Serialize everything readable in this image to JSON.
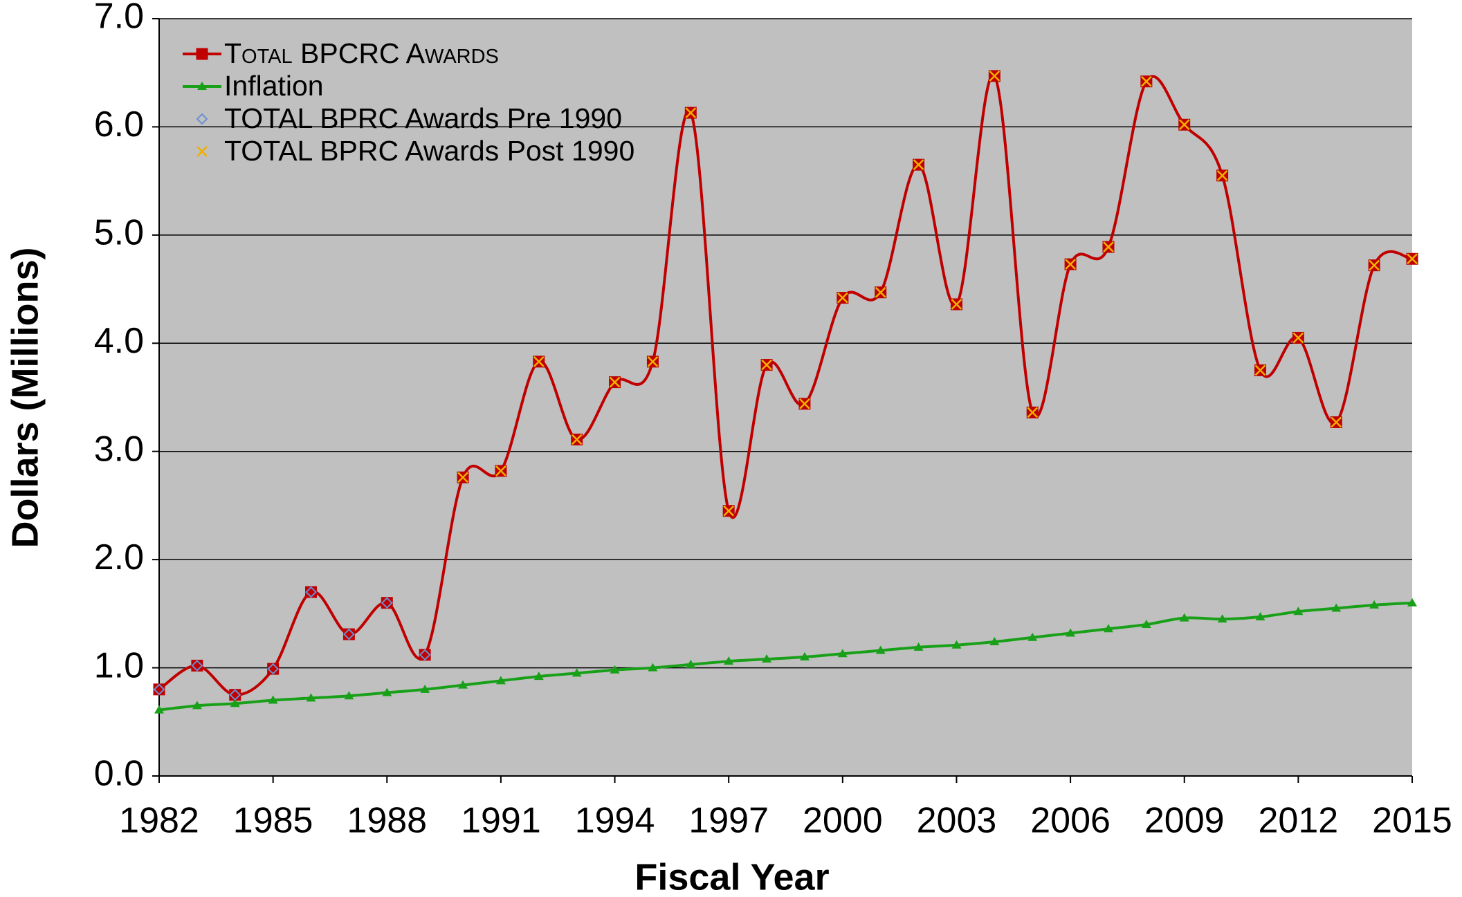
{
  "chart_data": {
    "type": "line",
    "xlabel": "Fiscal Year",
    "ylabel": "Dollars (Millions)",
    "x": [
      1982,
      1983,
      1984,
      1985,
      1986,
      1987,
      1988,
      1989,
      1990,
      1991,
      1992,
      1993,
      1994,
      1995,
      1996,
      1997,
      1998,
      1999,
      2000,
      2001,
      2002,
      2003,
      2004,
      2005,
      2006,
      2007,
      2008,
      2009,
      2010,
      2011,
      2012,
      2013,
      2014,
      2015
    ],
    "xlim": [
      1982,
      2015
    ],
    "xticks": [
      1982,
      1985,
      1988,
      1991,
      1994,
      1997,
      2000,
      2003,
      2006,
      2009,
      2012,
      2015
    ],
    "ylim": [
      0,
      7
    ],
    "yticks": [
      {
        "value": 0,
        "label": "0.0"
      },
      {
        "value": 1,
        "label": "1.0"
      },
      {
        "value": 2,
        "label": "2.0"
      },
      {
        "value": 3,
        "label": "3.0"
      },
      {
        "value": 4,
        "label": "4.0"
      },
      {
        "value": 5,
        "label": "5.0"
      },
      {
        "value": 6,
        "label": "6.0"
      },
      {
        "value": 7,
        "label": "7.0"
      }
    ],
    "grid": true,
    "legend": "upper left",
    "background": "#c0c0c0",
    "series": [
      {
        "name": "Total BPCRC Awards",
        "color": "#c00000",
        "line": true,
        "smooth": true,
        "marker": "square",
        "values": [
          0.8,
          1.02,
          0.75,
          0.99,
          1.7,
          1.31,
          1.6,
          1.12,
          2.76,
          2.82,
          3.83,
          3.11,
          3.64,
          3.83,
          6.13,
          2.45,
          3.8,
          3.44,
          4.42,
          4.47,
          5.65,
          4.36,
          6.47,
          3.36,
          4.73,
          4.89,
          6.42,
          6.02,
          5.55,
          3.75,
          4.05,
          3.27,
          4.72,
          4.78
        ]
      },
      {
        "name": "Inflation",
        "color": "#18a018",
        "line": true,
        "smooth": true,
        "marker": "triangle",
        "values": [
          0.61,
          0.65,
          0.67,
          0.7,
          0.72,
          0.74,
          0.77,
          0.8,
          0.84,
          0.88,
          0.92,
          0.95,
          0.98,
          1.0,
          1.03,
          1.06,
          1.08,
          1.1,
          1.13,
          1.16,
          1.19,
          1.21,
          1.24,
          1.28,
          1.32,
          1.36,
          1.4,
          1.46,
          1.45,
          1.47,
          1.52,
          1.55,
          1.58,
          1.6
        ]
      },
      {
        "name": "TOTAL BPRC Awards Pre 1990",
        "color": "#6a8fd0",
        "line": false,
        "marker": "diamond",
        "values": [
          0.8,
          1.02,
          0.75,
          0.99,
          1.7,
          1.31,
          1.6,
          1.12,
          null,
          null,
          null,
          null,
          null,
          null,
          null,
          null,
          null,
          null,
          null,
          null,
          null,
          null,
          null,
          null,
          null,
          null,
          null,
          null,
          null,
          null,
          null,
          null,
          null,
          null
        ]
      },
      {
        "name": "TOTAL BPRC Awards Post 1990",
        "color": "#f0b000",
        "line": false,
        "marker": "x",
        "values": [
          null,
          null,
          null,
          null,
          null,
          null,
          null,
          null,
          2.76,
          2.82,
          3.83,
          3.11,
          3.64,
          3.83,
          6.13,
          2.45,
          3.8,
          3.44,
          4.42,
          4.47,
          5.65,
          4.36,
          6.47,
          3.36,
          4.73,
          4.89,
          6.42,
          6.02,
          5.55,
          3.75,
          4.05,
          3.27,
          4.72,
          4.78
        ]
      }
    ]
  }
}
